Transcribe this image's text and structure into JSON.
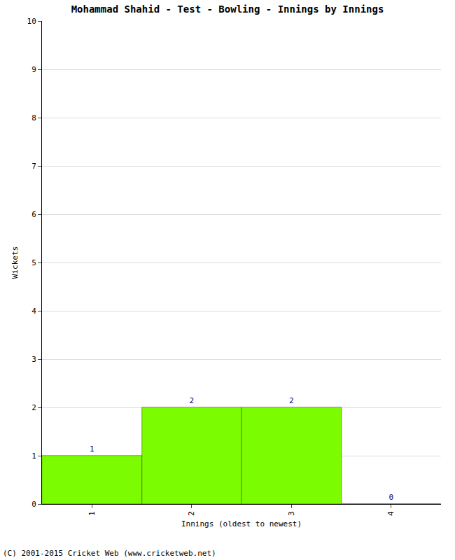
{
  "chart_data": {
    "type": "bar",
    "title": "Mohammad Shahid - Test - Bowling - Innings by Innings",
    "x_label": "Innings (oldest to newest)",
    "y_label": "Wickets",
    "categories": [
      "1",
      "2",
      "3",
      "4"
    ],
    "values": [
      1,
      2,
      2,
      0
    ],
    "color": "#7cfc00",
    "ylim": [
      0,
      10
    ],
    "yticks": [
      0,
      1,
      2,
      3,
      4,
      5,
      6,
      7,
      8,
      9,
      10
    ],
    "grid": true,
    "data_labels": true,
    "annotations": [
      "(C) 2001-2015 Cricket Web (www.cricketweb.net)"
    ]
  }
}
